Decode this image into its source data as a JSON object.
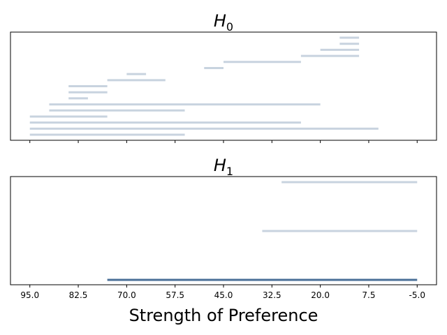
{
  "chart_data": {
    "type": "barcode",
    "xlabel": "Strength of Preference",
    "x_axis": {
      "inverted": true,
      "ticks": [
        95.0,
        82.5,
        70.0,
        57.5,
        45.0,
        32.5,
        20.0,
        7.5,
        -5.0
      ],
      "tick_labels": [
        "95.0",
        "82.5",
        "70.0",
        "57.5",
        "45.0",
        "32.5",
        "20.0",
        "7.5",
        "-5.0"
      ],
      "xlim": [
        100.0,
        -10.0
      ]
    },
    "colors": {
      "bar": "#c8d3df",
      "highlight": "#4a6f98"
    },
    "panels": [
      {
        "title_main": "H",
        "title_sub": "0",
        "show_tick_labels": false,
        "bars": [
          {
            "start": 95.0,
            "end": 55.0
          },
          {
            "start": 95.0,
            "end": 5.0
          },
          {
            "start": 95.0,
            "end": 25.0
          },
          {
            "start": 95.0,
            "end": 75.0
          },
          {
            "start": 90.0,
            "end": 55.0
          },
          {
            "start": 90.0,
            "end": 20.0
          },
          {
            "start": 85.0,
            "end": 80.0
          },
          {
            "start": 85.0,
            "end": 75.0
          },
          {
            "start": 85.0,
            "end": 75.0
          },
          {
            "start": 75.0,
            "end": 60.0
          },
          {
            "start": 70.0,
            "end": 65.0
          },
          {
            "start": 50.0,
            "end": 45.0
          },
          {
            "start": 45.0,
            "end": 25.0
          },
          {
            "start": 25.0,
            "end": 10.0
          },
          {
            "start": 20.0,
            "end": 10.0
          },
          {
            "start": 15.0,
            "end": 10.0
          },
          {
            "start": 15.0,
            "end": 10.0
          }
        ]
      },
      {
        "title_main": "H",
        "title_sub": "1",
        "show_tick_labels": true,
        "bars": [
          {
            "start": 75.0,
            "end": -5.0,
            "highlight": true
          },
          {
            "start": 35.0,
            "end": -5.0
          },
          {
            "start": 30.0,
            "end": -5.0
          }
        ]
      }
    ]
  }
}
